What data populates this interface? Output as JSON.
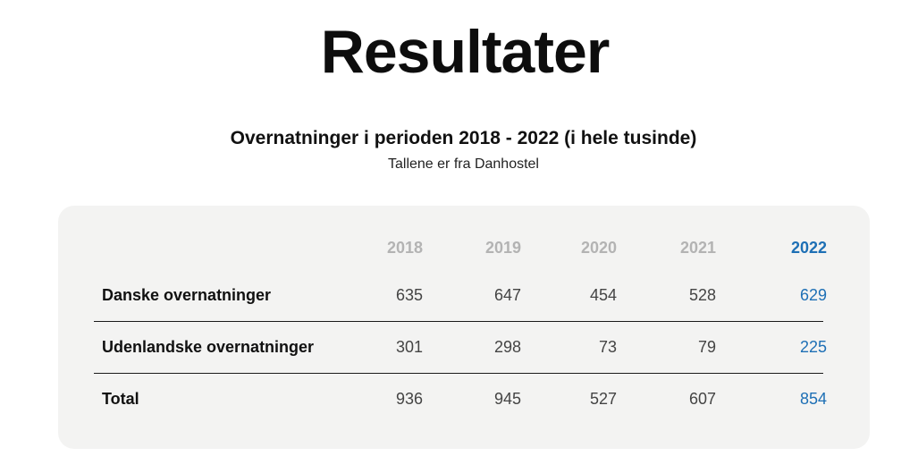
{
  "page": {
    "title": "Resultater"
  },
  "table": {
    "heading": "Overnatninger i perioden 2018 - 2022 (i hele tusinde)",
    "subheading": "Tallene er fra Danhostel",
    "years": [
      "2018",
      "2019",
      "2020",
      "2021",
      "2022"
    ],
    "highlight_color": "#1d6fb5",
    "rows": [
      {
        "label": "Danske overnatninger",
        "values": [
          "635",
          "647",
          "454",
          "528",
          "629"
        ]
      },
      {
        "label": "Udenlandske overnatninger",
        "values": [
          "301",
          "298",
          "73",
          "79",
          "225"
        ]
      },
      {
        "label": "Total",
        "values": [
          "936",
          "945",
          "527",
          "607",
          "854"
        ]
      }
    ]
  }
}
